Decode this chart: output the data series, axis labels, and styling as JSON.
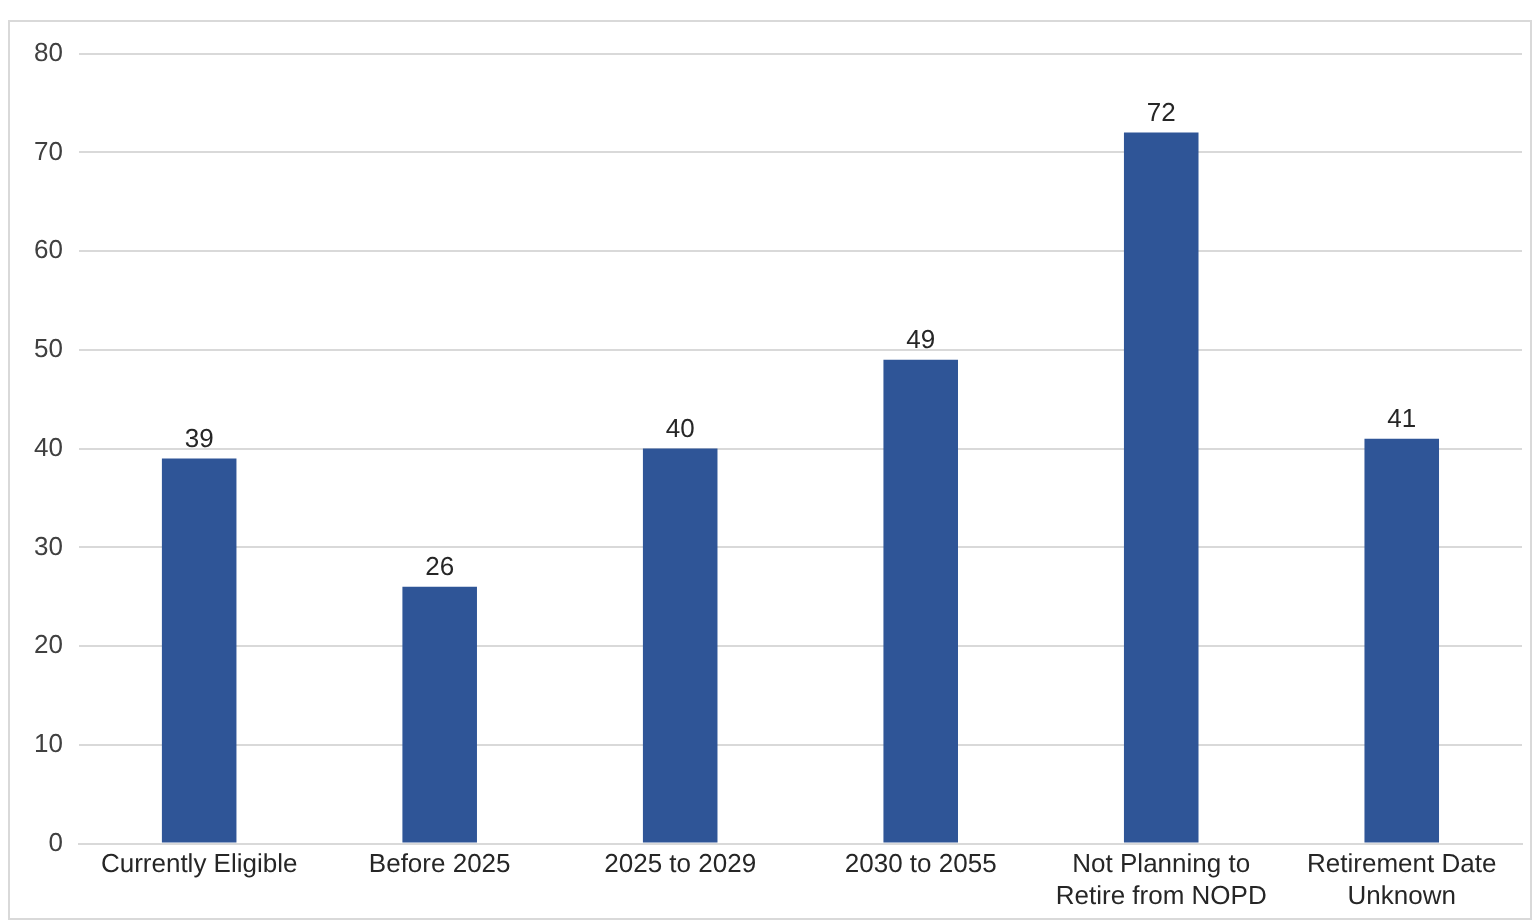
{
  "chart_data": {
    "type": "bar",
    "categories": [
      "Currently Eligible",
      "Before 2025",
      "2025 to 2029",
      "2030 to 2055",
      "Not Planning to Retire from NOPD",
      "Retirement Date Unknown"
    ],
    "values": [
      39,
      26,
      40,
      49,
      72,
      41
    ],
    "color": "#2f5597",
    "ylim": [
      0,
      80
    ],
    "yticks": [
      0,
      10,
      20,
      30,
      40,
      50,
      60,
      70,
      80
    ],
    "grid": "y",
    "data_labels": true,
    "legend": false
  }
}
